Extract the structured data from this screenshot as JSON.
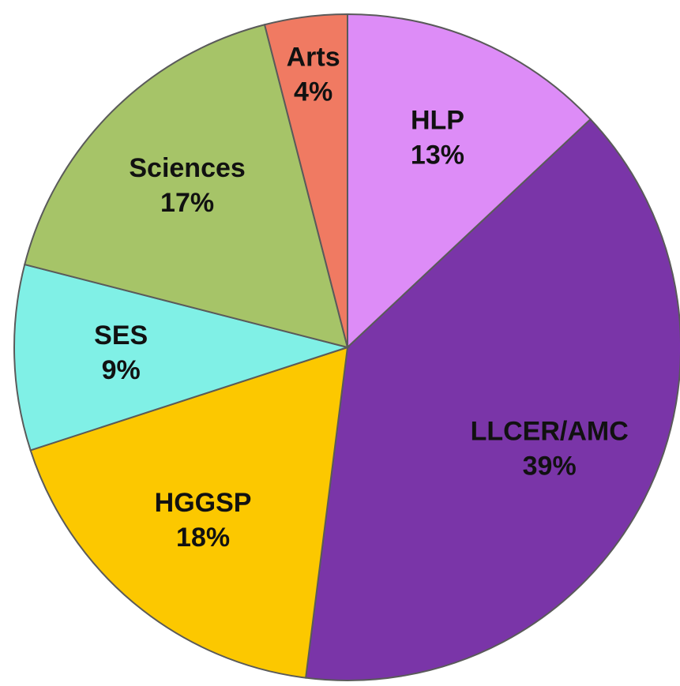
{
  "chart_data": {
    "type": "pie",
    "categories": [
      "HLP",
      "LLCER/AMC",
      "HGGSP",
      "SES",
      "Sciences",
      "Arts"
    ],
    "values": [
      13,
      39,
      18,
      9,
      17,
      4
    ],
    "value_labels": [
      "13%",
      "39%",
      "18%",
      "9%",
      "17%",
      "4%"
    ],
    "colors": [
      "#dd8cf7",
      "#7a35a8",
      "#fcc800",
      "#80f0e6",
      "#a6c468",
      "#f07a62"
    ]
  }
}
